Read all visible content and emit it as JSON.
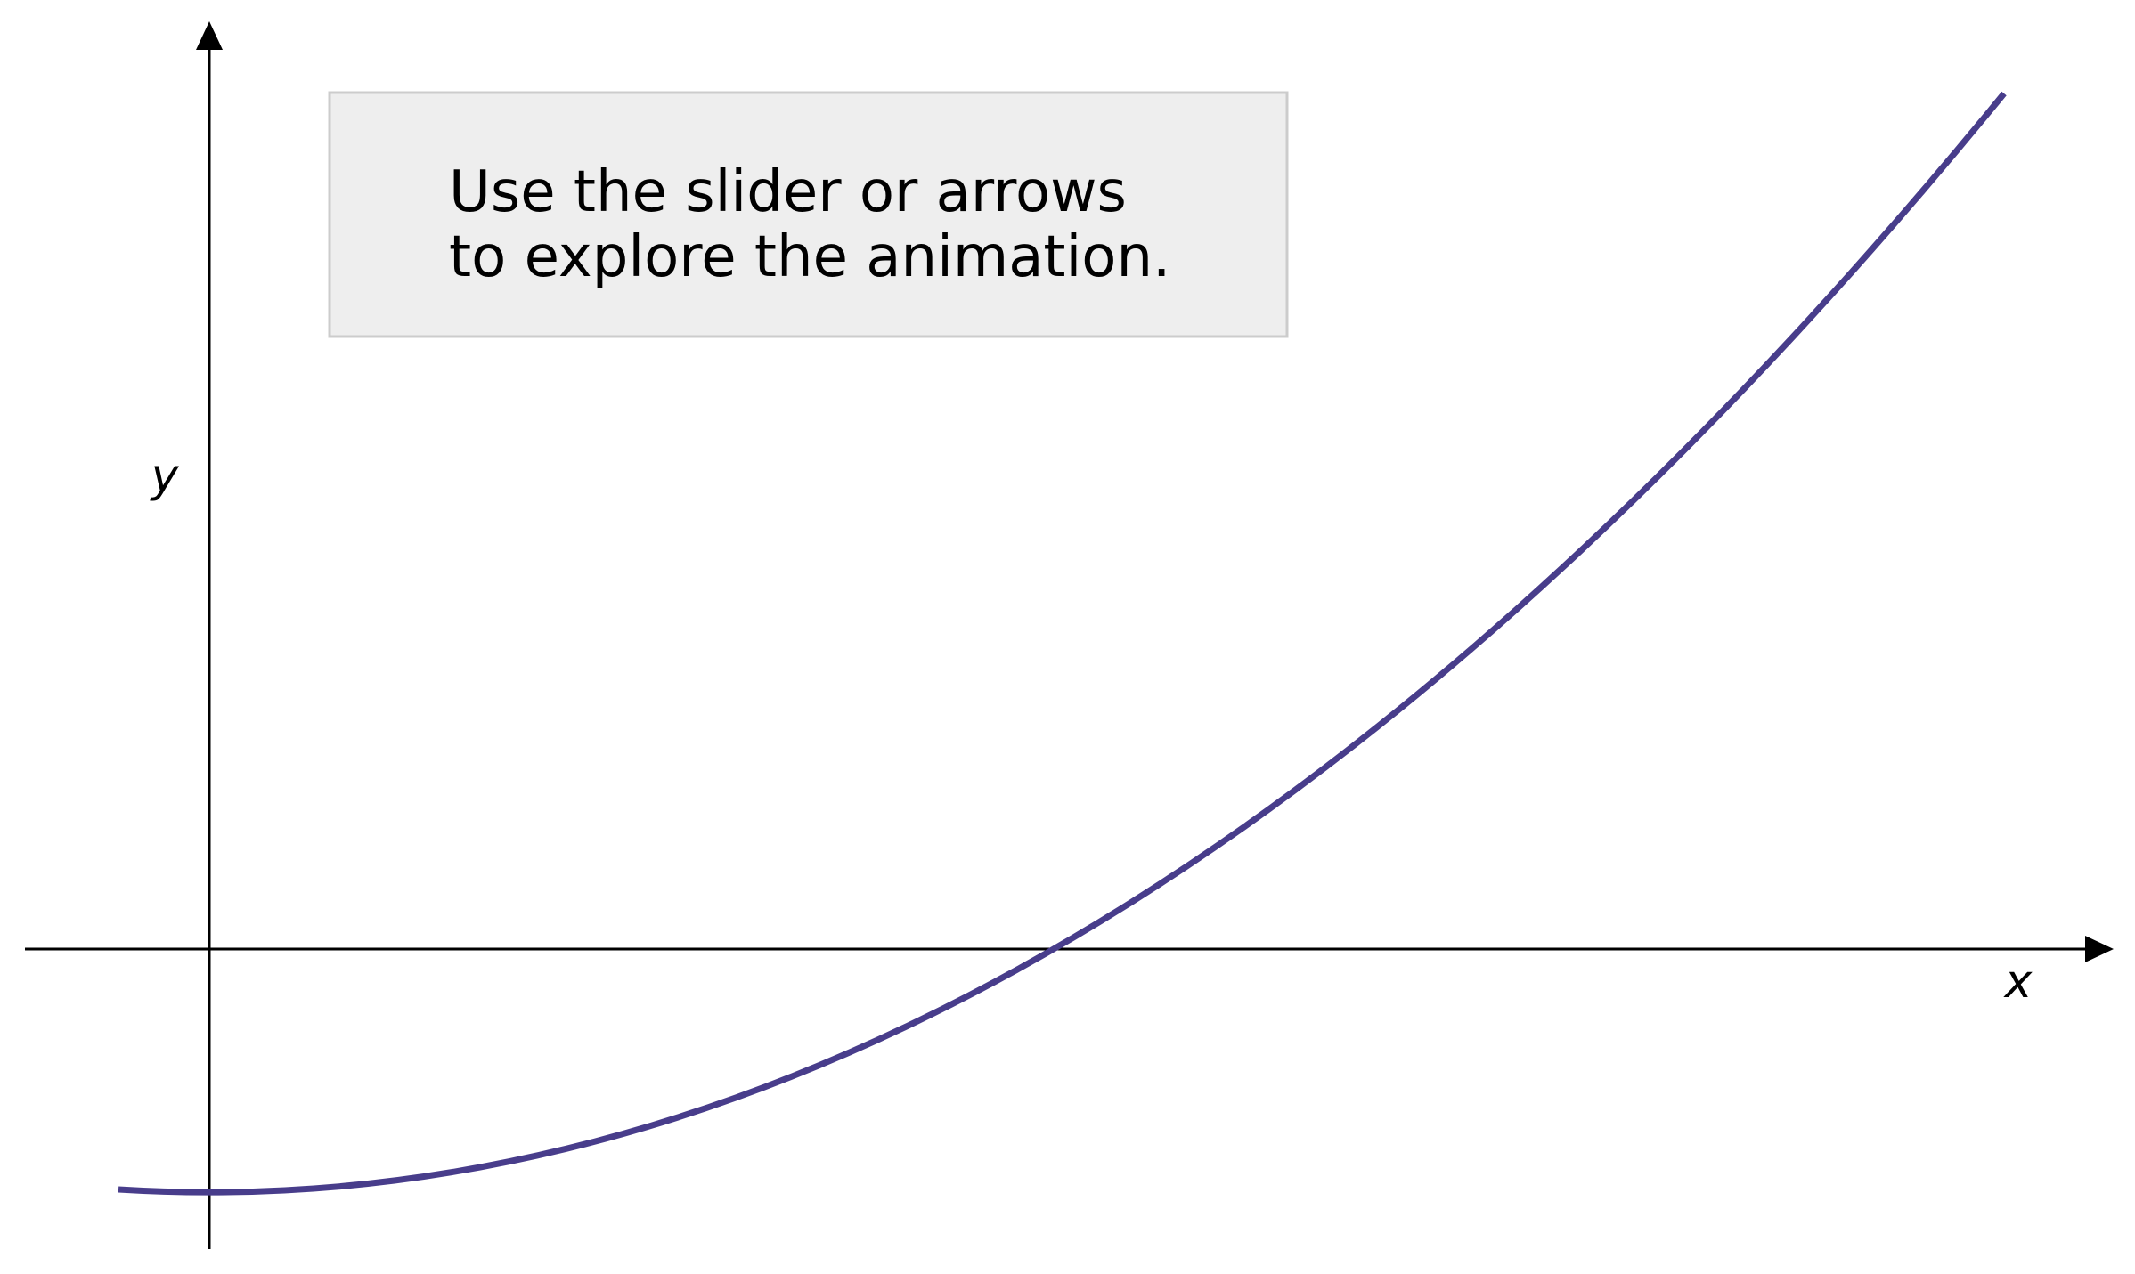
{
  "axes": {
    "y_label": "y",
    "x_label": "x"
  },
  "instructions": {
    "lines": [
      "Use the slider or arrows",
      "to explore the animation."
    ]
  }
}
